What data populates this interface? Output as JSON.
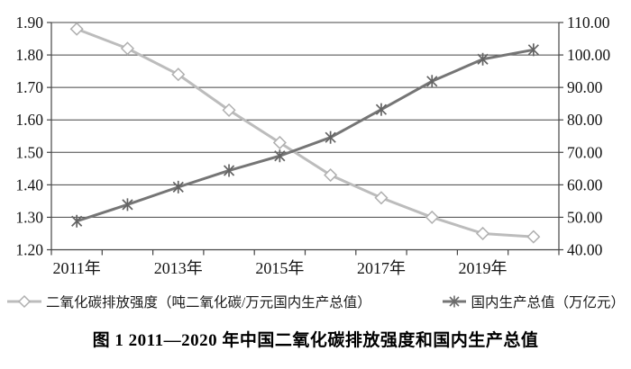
{
  "figure": {
    "caption": "图 1  2011—2020 年中国二氧化碳排放强度和国内生产总值"
  },
  "chart_data": {
    "type": "line",
    "categories": [
      "2011年",
      "2012年",
      "2013年",
      "2014年",
      "2015年",
      "2016年",
      "2017年",
      "2018年",
      "2019年",
      "2020年"
    ],
    "x_tick_labels_shown": [
      "2011年",
      "2013年",
      "2015年",
      "2017年",
      "2019年"
    ],
    "series": [
      {
        "name": "二氧化碳排放强度（吨二氧化碳/万元国内生产总值）",
        "axis": "left",
        "marker": "diamond",
        "color": "#bcbcbc",
        "values": [
          1.88,
          1.82,
          1.74,
          1.63,
          1.53,
          1.43,
          1.36,
          1.3,
          1.25,
          1.24
        ]
      },
      {
        "name": "国内生产总值（万亿元）",
        "axis": "right",
        "marker": "asterisk",
        "color": "#757575",
        "values": [
          48.8,
          53.9,
          59.3,
          64.4,
          68.9,
          74.6,
          83.2,
          91.9,
          98.7,
          101.6
        ]
      }
    ],
    "left_axis": {
      "min": 1.2,
      "max": 1.9,
      "step": 0.1,
      "decimals": 2
    },
    "right_axis": {
      "min": 40.0,
      "max": 110.0,
      "step": 10.0,
      "decimals": 2
    },
    "grid": true,
    "legend_position": "bottom",
    "colors": {
      "grid": "#454545",
      "axis": "#454545",
      "text": "#141414",
      "background": "#ffffff"
    }
  }
}
